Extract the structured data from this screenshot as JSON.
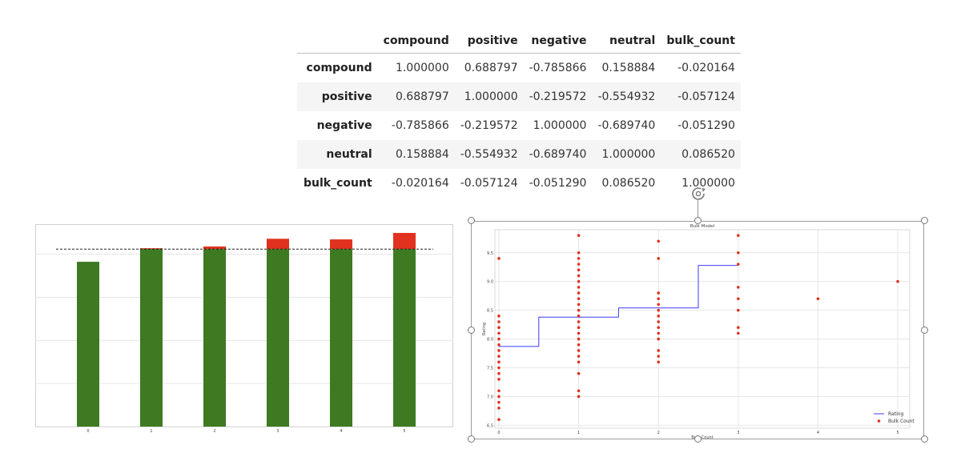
{
  "table": {
    "columns": [
      "compound",
      "positive",
      "negative",
      "neutral",
      "bulk_count"
    ],
    "rows": [
      {
        "label": "compound",
        "values": [
          "1.000000",
          "0.688797",
          "-0.785866",
          "0.158884",
          "-0.020164"
        ]
      },
      {
        "label": "positive",
        "values": [
          "0.688797",
          "1.000000",
          "-0.219572",
          "-0.554932",
          "-0.057124"
        ]
      },
      {
        "label": "negative",
        "values": [
          "-0.785866",
          "-0.219572",
          "1.000000",
          "-0.689740",
          "-0.051290"
        ]
      },
      {
        "label": "neutral",
        "values": [
          "0.158884",
          "-0.554932",
          "-0.689740",
          "1.000000",
          "0.086520"
        ]
      },
      {
        "label": "bulk_count",
        "values": [
          "-0.020164",
          "-0.057124",
          "-0.051290",
          "0.086520",
          "1.000000"
        ]
      }
    ]
  },
  "colors": {
    "bar_base": "#3d7a22",
    "bar_excess": "#e0321e",
    "step_line": "#3b3bff",
    "scatter": "#e0321e",
    "grid": "#e6e6e6"
  },
  "chart_data": [
    {
      "type": "bar",
      "categories": [
        "0",
        "1",
        "2",
        "3",
        "4",
        "5"
      ],
      "series": [
        {
          "values": [
            7.65,
            8.24,
            8.24,
            8.24,
            8.24,
            8.24
          ]
        },
        {
          "values": [
            0,
            0.04,
            0.12,
            0.48,
            0.45,
            0.75
          ]
        }
      ],
      "stacked": true,
      "reference_line": 8.24,
      "yticks": [
        "0",
        "2",
        "4",
        "6",
        "8"
      ],
      "ylim": [
        0,
        9.4
      ],
      "grid": true
    },
    {
      "type": "line",
      "title": "Bulk Model",
      "xlabel": "Bulk Count",
      "ylabel": "Rating",
      "xticks": [
        "0",
        "1",
        "2",
        "3",
        "4",
        "5"
      ],
      "yticks": [
        "6.5",
        "7.0",
        "7.5",
        "8.0",
        "8.5",
        "9.0",
        "9.5"
      ],
      "xlim": [
        -0.05,
        5.15
      ],
      "ylim": [
        6.45,
        9.9
      ],
      "grid": true,
      "legend": [
        "Rating",
        "Bulk Count"
      ],
      "legend_placement": "lower-right",
      "series": [
        {
          "name": "Rating",
          "kind": "step",
          "x": [
            0,
            0.5,
            0.5,
            1.5,
            1.5,
            2.5,
            2.5,
            3
          ],
          "y": [
            7.87,
            7.87,
            8.38,
            8.38,
            8.54,
            8.54,
            9.28,
            9.28
          ]
        },
        {
          "name": "Bulk Count",
          "kind": "scatter",
          "points": [
            [
              0,
              9.4
            ],
            [
              0,
              8.4
            ],
            [
              0,
              8.3
            ],
            [
              0,
              8.2
            ],
            [
              0,
              8.1
            ],
            [
              0,
              8.0
            ],
            [
              0,
              7.9
            ],
            [
              0,
              7.8
            ],
            [
              0,
              7.7
            ],
            [
              0,
              7.6
            ],
            [
              0,
              7.5
            ],
            [
              0,
              7.4
            ],
            [
              0,
              7.3
            ],
            [
              0,
              7.1
            ],
            [
              0,
              7.0
            ],
            [
              0,
              6.9
            ],
            [
              0,
              6.8
            ],
            [
              0,
              6.6
            ],
            [
              1,
              9.8
            ],
            [
              1,
              9.5
            ],
            [
              1,
              9.4
            ],
            [
              1,
              9.3
            ],
            [
              1,
              9.2
            ],
            [
              1,
              9.1
            ],
            [
              1,
              9.0
            ],
            [
              1,
              8.9
            ],
            [
              1,
              8.8
            ],
            [
              1,
              8.7
            ],
            [
              1,
              8.6
            ],
            [
              1,
              8.5
            ],
            [
              1,
              8.4
            ],
            [
              1,
              8.3
            ],
            [
              1,
              8.2
            ],
            [
              1,
              8.1
            ],
            [
              1,
              8.0
            ],
            [
              1,
              7.9
            ],
            [
              1,
              7.8
            ],
            [
              1,
              7.7
            ],
            [
              1,
              7.6
            ],
            [
              1,
              7.4
            ],
            [
              1,
              7.1
            ],
            [
              1,
              7.0
            ],
            [
              2,
              9.7
            ],
            [
              2,
              9.4
            ],
            [
              2,
              8.8
            ],
            [
              2,
              8.7
            ],
            [
              2,
              8.6
            ],
            [
              2,
              8.5
            ],
            [
              2,
              8.4
            ],
            [
              2,
              8.3
            ],
            [
              2,
              8.2
            ],
            [
              2,
              8.1
            ],
            [
              2,
              8.0
            ],
            [
              2,
              7.8
            ],
            [
              2,
              7.7
            ],
            [
              2,
              7.6
            ],
            [
              3,
              9.8
            ],
            [
              3,
              9.5
            ],
            [
              3,
              9.3
            ],
            [
              3,
              8.9
            ],
            [
              3,
              8.7
            ],
            [
              3,
              8.5
            ],
            [
              3,
              8.2
            ],
            [
              3,
              8.1
            ],
            [
              4,
              8.7
            ],
            [
              5,
              9.0
            ]
          ]
        }
      ]
    }
  ]
}
